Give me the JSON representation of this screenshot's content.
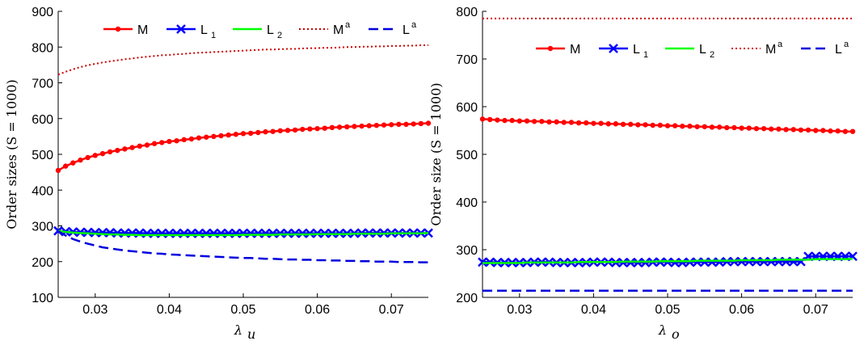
{
  "chart_data": [
    {
      "type": "line",
      "xlabel": "λu",
      "xlabel_main": "λ",
      "xlabel_sub": "u",
      "ylabel": "Order sizes (S = 1000)",
      "xlim": [
        0.025,
        0.075
      ],
      "ylim": [
        100,
        900
      ],
      "xticks": [
        0.03,
        0.04,
        0.05,
        0.06,
        0.07
      ],
      "xtick_labels": [
        "0.03",
        "0.04",
        "0.05",
        "0.06",
        "0.07"
      ],
      "yticks": [
        100,
        200,
        300,
        400,
        500,
        600,
        700,
        800,
        900
      ],
      "ytick_labels": [
        "100",
        "200",
        "300",
        "400",
        "500",
        "600",
        "700",
        "800",
        "900"
      ],
      "legend_position": "top",
      "x_start": 0.025,
      "x_step": 0.001,
      "n_points": 51,
      "series": [
        {
          "name": "M",
          "label_main": "M",
          "label_sup": "",
          "label_sub": "",
          "color": "#ff0000",
          "style": "solid",
          "marker": "dot",
          "values": [
            455,
            467,
            476,
            484,
            491,
            497,
            502,
            507,
            511,
            515,
            519,
            523,
            526,
            530,
            533,
            536,
            538,
            541,
            543,
            546,
            548,
            550,
            552,
            554,
            556,
            558,
            559,
            561,
            563,
            564,
            566,
            567,
            568,
            570,
            571,
            572,
            573,
            575,
            576,
            577,
            578,
            579,
            580,
            581,
            582,
            583,
            584,
            584,
            585,
            586,
            587
          ]
        },
        {
          "name": "L1",
          "label_main": "L",
          "label_sup": "",
          "label_sub": "1",
          "color": "#0000ff",
          "style": "solid",
          "marker": "x",
          "values": [
            286,
            284,
            283,
            282,
            282,
            281,
            281,
            281,
            280,
            280,
            280,
            280,
            279,
            279,
            279,
            279,
            279,
            279,
            279,
            279,
            279,
            279,
            279,
            279,
            279,
            279,
            279,
            279,
            279,
            279,
            279,
            279,
            279,
            279,
            279,
            279,
            279,
            279,
            279,
            279,
            279,
            280,
            280,
            280,
            280,
            280,
            280,
            280,
            280,
            280,
            280
          ]
        },
        {
          "name": "L2",
          "label_main": "L",
          "label_sup": "",
          "label_sub": "2",
          "color": "#00ff00",
          "style": "solid",
          "marker": "none",
          "values": [
            286,
            283,
            281,
            280,
            279,
            278,
            277,
            276,
            276,
            275,
            275,
            274,
            274,
            274,
            274,
            274,
            274,
            274,
            274,
            274,
            274,
            274,
            274,
            274,
            274,
            275,
            275,
            275,
            275,
            275,
            276,
            276,
            276,
            276,
            276,
            277,
            277,
            277,
            277,
            277,
            278,
            278,
            278,
            278,
            278,
            279,
            279,
            279,
            279,
            279,
            280
          ]
        },
        {
          "name": "Ma",
          "label_main": "M",
          "label_sup": "a",
          "label_sub": "",
          "color": "#cc0000",
          "style": "dotted",
          "marker": "none",
          "values": [
            723,
            731,
            738,
            744,
            749,
            753,
            757,
            760,
            763,
            766,
            768,
            771,
            773,
            775,
            777,
            778,
            780,
            781,
            783,
            784,
            785,
            786,
            787,
            788,
            789,
            790,
            791,
            792,
            793,
            793,
            794,
            795,
            795,
            796,
            797,
            797,
            798,
            798,
            799,
            800,
            800,
            801,
            801,
            802,
            802,
            803,
            803,
            804,
            804,
            805,
            805
          ]
        },
        {
          "name": "La",
          "label_main": "L",
          "label_sup": "a",
          "label_sub": "",
          "color": "#0000dd",
          "style": "dashed",
          "marker": "none",
          "values": [
            285,
            273,
            263,
            256,
            250,
            245,
            240,
            237,
            234,
            231,
            229,
            227,
            225,
            223,
            222,
            220,
            219,
            218,
            217,
            216,
            215,
            214,
            213,
            212,
            211,
            210,
            210,
            209,
            208,
            208,
            207,
            206,
            206,
            205,
            205,
            204,
            204,
            203,
            203,
            202,
            202,
            201,
            201,
            200,
            200,
            200,
            199,
            199,
            199,
            198,
            198
          ]
        }
      ]
    },
    {
      "type": "line",
      "xlabel": "λo",
      "xlabel_main": "λ",
      "xlabel_sub": "o",
      "ylabel": "Order size (S = 1000)",
      "xlim": [
        0.025,
        0.075
      ],
      "ylim": [
        200,
        800
      ],
      "xticks": [
        0.03,
        0.04,
        0.05,
        0.06,
        0.07
      ],
      "xtick_labels": [
        "0.03",
        "0.04",
        "0.05",
        "0.06",
        "0.07"
      ],
      "yticks": [
        200,
        300,
        400,
        500,
        600,
        700,
        800
      ],
      "ytick_labels": [
        "200",
        "300",
        "400",
        "500",
        "600",
        "700",
        "800"
      ],
      "legend_position": "top",
      "x_start": 0.025,
      "x_step": 0.001,
      "n_points": 51,
      "series": [
        {
          "name": "M",
          "label_main": "M",
          "label_sup": "",
          "label_sub": "",
          "color": "#ff0000",
          "style": "solid",
          "marker": "dot",
          "values": [
            574,
            573,
            572,
            571,
            571,
            570,
            570,
            569,
            569,
            568,
            568,
            567,
            567,
            566,
            566,
            565,
            565,
            564,
            564,
            563,
            563,
            562,
            562,
            561,
            561,
            560,
            560,
            559,
            559,
            558,
            558,
            557,
            557,
            556,
            556,
            555,
            555,
            554,
            554,
            553,
            553,
            552,
            552,
            551,
            551,
            550,
            550,
            549,
            549,
            548,
            548
          ]
        },
        {
          "name": "L1",
          "label_main": "L",
          "label_sup": "",
          "label_sub": "1",
          "color": "#0000ff",
          "style": "solid",
          "marker": "x",
          "values": [
            274,
            274,
            273,
            273,
            273,
            273,
            273,
            274,
            274,
            274,
            273,
            273,
            273,
            273,
            273,
            274,
            274,
            274,
            273,
            273,
            273,
            273,
            273,
            274,
            274,
            274,
            273,
            273,
            274,
            274,
            274,
            274,
            274,
            275,
            275,
            275,
            275,
            275,
            275,
            275,
            275,
            275,
            275,
            275,
            286,
            286,
            286,
            286,
            286,
            286,
            286
          ]
        },
        {
          "name": "L2",
          "label_main": "L",
          "label_sup": "",
          "label_sub": "2",
          "color": "#00ff00",
          "style": "solid",
          "marker": "none",
          "values": [
            272,
            272,
            272,
            272,
            272,
            272,
            273,
            273,
            273,
            273,
            273,
            273,
            273,
            274,
            274,
            274,
            274,
            274,
            274,
            275,
            275,
            275,
            275,
            275,
            276,
            276,
            276,
            276,
            276,
            277,
            277,
            277,
            277,
            277,
            277,
            278,
            278,
            278,
            278,
            278,
            279,
            279,
            279,
            279,
            279,
            280,
            280,
            280,
            280,
            280,
            281
          ]
        },
        {
          "name": "Ma",
          "label_main": "M",
          "label_sup": "a",
          "label_sub": "",
          "color": "#cc0000",
          "style": "dotted",
          "marker": "none",
          "values": [
            785,
            785,
            785,
            785,
            785,
            785,
            785,
            785,
            785,
            785,
            785,
            785,
            785,
            785,
            785,
            785,
            785,
            785,
            785,
            785,
            785,
            785,
            785,
            785,
            785,
            785,
            785,
            785,
            785,
            785,
            785,
            785,
            785,
            785,
            785,
            785,
            785,
            785,
            785,
            785,
            785,
            785,
            785,
            785,
            785,
            785,
            785,
            785,
            785,
            785,
            785
          ]
        },
        {
          "name": "La",
          "label_main": "L",
          "label_sup": "a",
          "label_sub": "",
          "color": "#0000dd",
          "style": "dashed",
          "marker": "none",
          "values": [
            214,
            214,
            214,
            214,
            214,
            214,
            214,
            214,
            214,
            214,
            214,
            214,
            214,
            214,
            214,
            214,
            214,
            214,
            214,
            214,
            214,
            214,
            214,
            214,
            214,
            214,
            214,
            214,
            214,
            214,
            214,
            214,
            214,
            214,
            214,
            214,
            214,
            214,
            214,
            214,
            214,
            214,
            214,
            214,
            214,
            214,
            214,
            214,
            214,
            214,
            214
          ]
        }
      ]
    }
  ]
}
